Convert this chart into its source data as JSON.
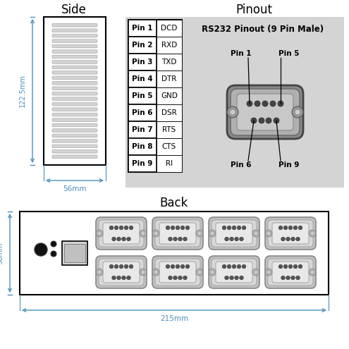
{
  "title_side": "Side",
  "title_pinout": "Pinout",
  "title_back": "Back",
  "dim_height_side": "122.5mm",
  "dim_width_side": "56mm",
  "dim_width_back": "215mm",
  "dim_height_back": "56mm",
  "pin_labels": [
    "Pin 1",
    "Pin 2",
    "Pin 3",
    "Pin 4",
    "Pin 5",
    "Pin 6",
    "Pin 7",
    "Pin 8",
    "Pin 9"
  ],
  "pin_signals": [
    "DCD",
    "RXD",
    "TXD",
    "DTR",
    "GND",
    "DSR",
    "RTS",
    "CTS",
    "RI"
  ],
  "rs232_title": "RS232 Pinout (9 Pin Male)",
  "bg_color": "#ffffff",
  "gray_light": "#d4d4d4",
  "gray_medium": "#a8a8a8",
  "gray_dark": "#707070",
  "gray_darker": "#404040",
  "blue_dim": "#4a90b8",
  "text_color": "#000000"
}
